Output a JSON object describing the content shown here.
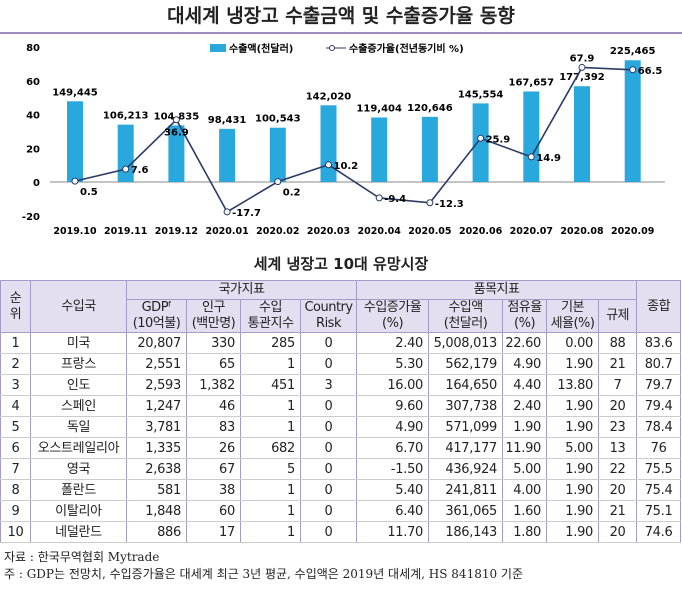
{
  "title": "대세계 냉장고 수출금액 및 수출증가율 동향",
  "chart_data": {
    "type": "bar+line",
    "categories": [
      "2019.10",
      "2019.11",
      "2019.12",
      "2020.01",
      "2020.02",
      "2020.03",
      "2020.04",
      "2020.05",
      "2020.06",
      "2020.07",
      "2020.08",
      "2020.09"
    ],
    "series": [
      {
        "name": "수출액(천달러)",
        "type": "bar",
        "color": "#29a8dd",
        "values": [
          149445,
          106213,
          104835,
          98431,
          100543,
          142020,
          119404,
          120646,
          145554,
          167657,
          177392,
          225465
        ],
        "labels": [
          "149,445",
          "106,213",
          "104,835",
          "98,431",
          "100,543",
          "142,020",
          "119,404",
          "120,646",
          "145,554",
          "167,657",
          "177,392",
          "225,465"
        ]
      },
      {
        "name": "수출증가율(전년동기비 %)",
        "type": "line",
        "color": "#2b3a67",
        "values": [
          0.5,
          7.6,
          36.9,
          -17.7,
          0.2,
          10.2,
          -9.4,
          -12.3,
          25.9,
          14.9,
          67.9,
          66.5
        ]
      }
    ],
    "yticks": [
      "80",
      "60",
      "40",
      "20",
      "0",
      "-20"
    ],
    "ylim": [
      -20,
      80
    ],
    "legend": "top-center"
  },
  "subtitle": "세계 냉장고 10대 유망시장",
  "table": {
    "h": {
      "rank": "순위",
      "country": "수입국",
      "national": "국가지표",
      "item": "품목지표",
      "total": "종합",
      "cols": [
        "GDPᶠ (10억불)",
        "인구 (백만명)",
        "수입 통관지수",
        "Country Risk",
        "수입증가율 (%)",
        "수입액 (천달러)",
        "점유율 (%)",
        "기본 세율(%)",
        "규제"
      ]
    },
    "rows": [
      [
        "1",
        "미국",
        "20,807",
        "330",
        "285",
        "0",
        "2.40",
        "5,008,013",
        "22.60",
        "0.00",
        "88",
        "83.6"
      ],
      [
        "2",
        "프랑스",
        "2,551",
        "65",
        "1",
        "0",
        "5.30",
        "562,179",
        "4.90",
        "1.90",
        "21",
        "80.7"
      ],
      [
        "3",
        "인도",
        "2,593",
        "1,382",
        "451",
        "3",
        "16.00",
        "164,650",
        "4.40",
        "13.80",
        "7",
        "79.7"
      ],
      [
        "4",
        "스페인",
        "1,247",
        "46",
        "1",
        "0",
        "9.60",
        "307,738",
        "2.40",
        "1.90",
        "20",
        "79.4"
      ],
      [
        "5",
        "독일",
        "3,781",
        "83",
        "1",
        "0",
        "4.90",
        "571,099",
        "1.90",
        "1.90",
        "23",
        "78.4"
      ],
      [
        "6",
        "오스트레일리아",
        "1,335",
        "26",
        "682",
        "0",
        "6.70",
        "417,177",
        "11.90",
        "5.00",
        "13",
        "76"
      ],
      [
        "7",
        "영국",
        "2,638",
        "67",
        "5",
        "0",
        "-1.50",
        "436,924",
        "5.00",
        "1.90",
        "22",
        "75.5"
      ],
      [
        "8",
        "폴란드",
        "581",
        "38",
        "1",
        "0",
        "5.40",
        "241,811",
        "4.00",
        "1.90",
        "20",
        "75.4"
      ],
      [
        "9",
        "이탈리아",
        "1,848",
        "60",
        "1",
        "0",
        "6.40",
        "361,065",
        "1.60",
        "1.90",
        "21",
        "75.1"
      ],
      [
        "10",
        "네덜란드",
        "886",
        "17",
        "1",
        "0",
        "11.70",
        "186,143",
        "1.80",
        "1.90",
        "20",
        "74.6"
      ]
    ]
  },
  "notes": [
    "자료 : 한국무역협회 Mytrade",
    "주   : GDP는 전망치, 수입증가율은 대세계 최근 3년 평균, 수입액은 2019년 대세계, HS 841810 기준"
  ]
}
